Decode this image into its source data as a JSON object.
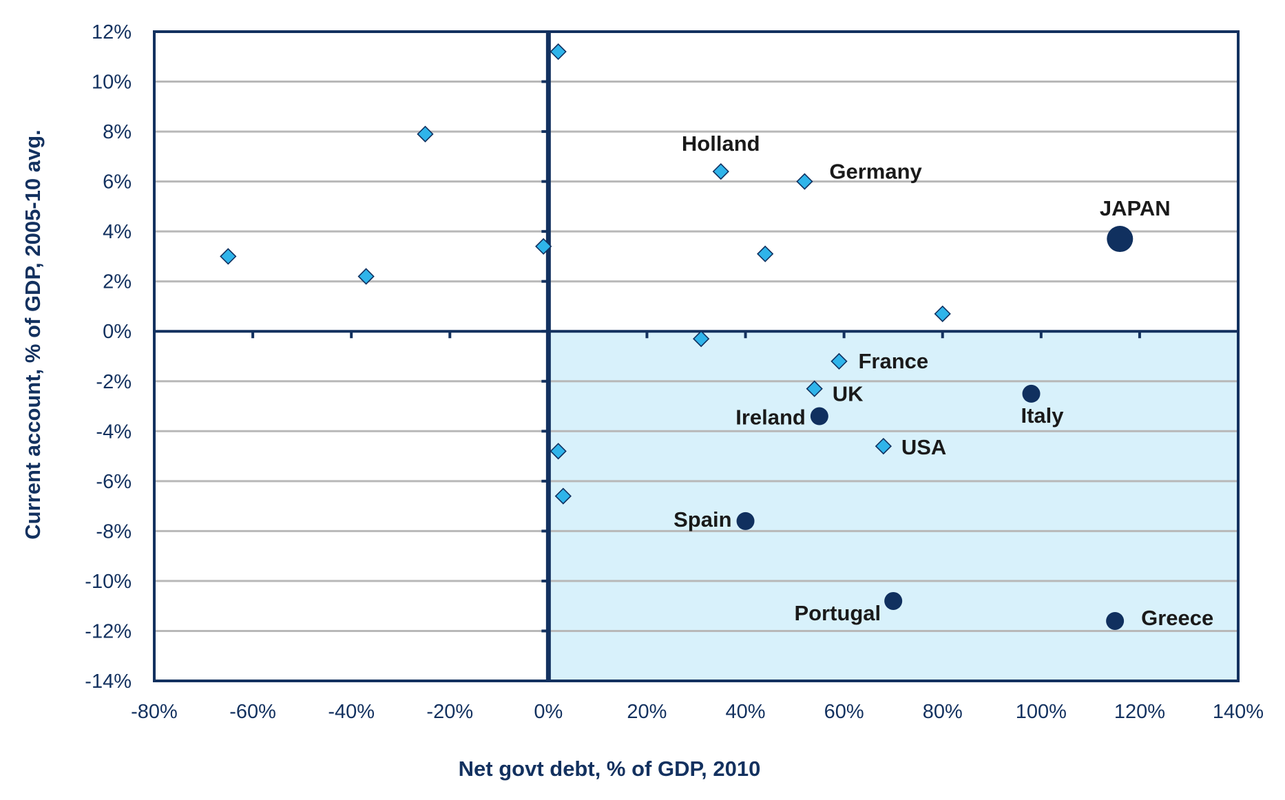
{
  "chart_data": {
    "type": "scatter",
    "title": "",
    "xlabel": "Net govt debt, % of GDP, 2010",
    "ylabel": "Current account, % of GDP, 2005-10 avg.",
    "xlim": [
      -80,
      140
    ],
    "ylim": [
      -14,
      12
    ],
    "x_ticks": [
      -80,
      -60,
      -40,
      -20,
      0,
      20,
      40,
      60,
      80,
      100,
      120,
      140
    ],
    "y_ticks": [
      -14,
      -12,
      -10,
      -8,
      -6,
      -4,
      -2,
      0,
      2,
      4,
      6,
      8,
      10,
      12
    ],
    "tick_format": "{v}%",
    "grid": "horizontal",
    "shaded_quadrant": "lower-right",
    "colors": {
      "axis": "#13315f",
      "diamond_fill": "#2fb4ea",
      "circle_fill": "#10305f",
      "shade": "#d8f1fb",
      "grid": "#b8b8b8"
    },
    "points": [
      {
        "x": -65,
        "y": 3.0,
        "marker": "diamond",
        "label": ""
      },
      {
        "x": -37,
        "y": 2.2,
        "marker": "diamond",
        "label": ""
      },
      {
        "x": -25,
        "y": 7.9,
        "marker": "diamond",
        "label": ""
      },
      {
        "x": -1,
        "y": 3.4,
        "marker": "diamond",
        "label": ""
      },
      {
        "x": 2,
        "y": 11.2,
        "marker": "diamond",
        "label": ""
      },
      {
        "x": 35,
        "y": 6.4,
        "marker": "diamond",
        "label": "Holland"
      },
      {
        "x": 52,
        "y": 6.0,
        "marker": "diamond",
        "label": "Germany"
      },
      {
        "x": 44,
        "y": 3.1,
        "marker": "diamond",
        "label": ""
      },
      {
        "x": 80,
        "y": 0.7,
        "marker": "diamond",
        "label": ""
      },
      {
        "x": 116,
        "y": 3.7,
        "marker": "circle-large",
        "label": "JAPAN"
      },
      {
        "x": 31,
        "y": -0.3,
        "marker": "diamond",
        "label": ""
      },
      {
        "x": 59,
        "y": -1.2,
        "marker": "diamond",
        "label": "France"
      },
      {
        "x": 54,
        "y": -2.3,
        "marker": "diamond",
        "label": "UK"
      },
      {
        "x": 55,
        "y": -3.4,
        "marker": "circle",
        "label": "Ireland"
      },
      {
        "x": 98,
        "y": -2.5,
        "marker": "circle",
        "label": "Italy"
      },
      {
        "x": 68,
        "y": -4.6,
        "marker": "diamond",
        "label": "USA"
      },
      {
        "x": 2,
        "y": -4.8,
        "marker": "diamond",
        "label": ""
      },
      {
        "x": 3,
        "y": -6.6,
        "marker": "diamond",
        "label": ""
      },
      {
        "x": 40,
        "y": -7.6,
        "marker": "circle",
        "label": "Spain"
      },
      {
        "x": 70,
        "y": -10.8,
        "marker": "circle",
        "label": "Portugal"
      },
      {
        "x": 115,
        "y": -11.6,
        "marker": "circle",
        "label": "Greece"
      }
    ]
  }
}
